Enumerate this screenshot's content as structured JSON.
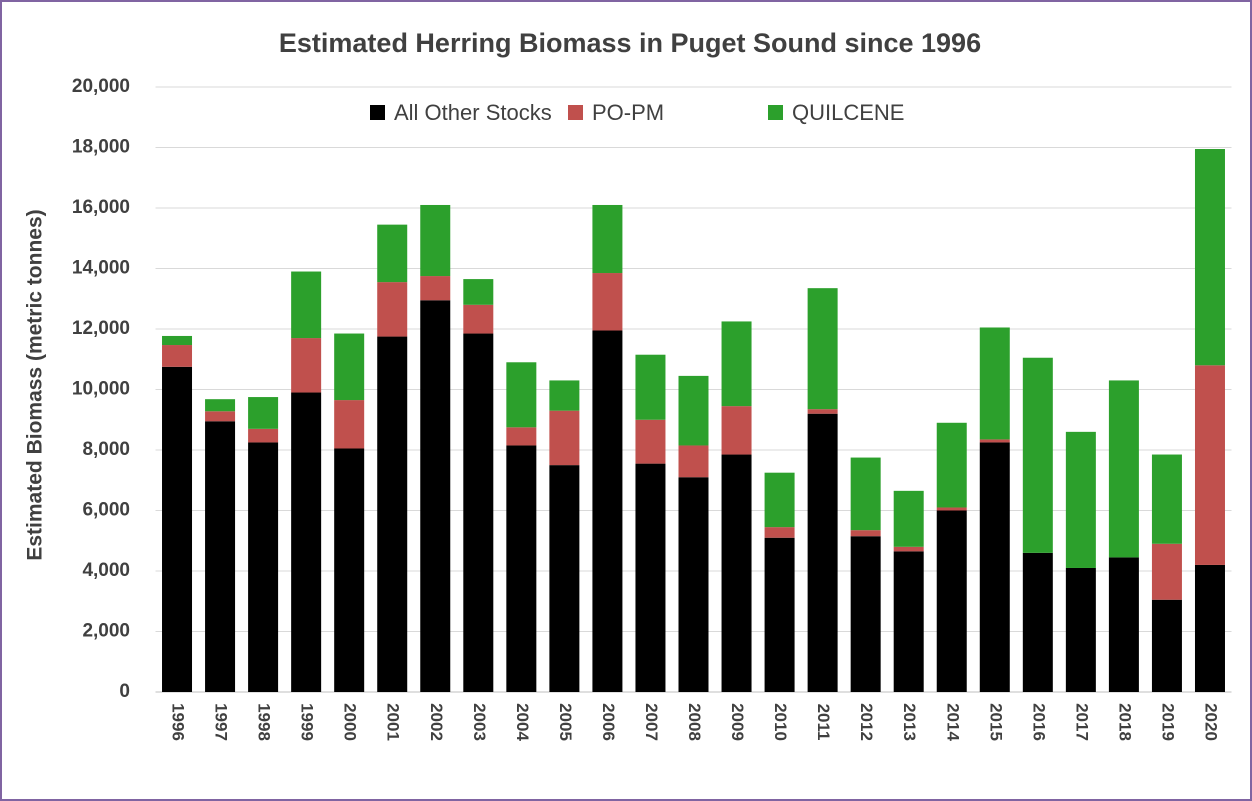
{
  "chart_data": {
    "type": "stacked_bar",
    "title": "Estimated Herring Biomass in Puget Sound since 1996",
    "y_label": "Estimated Biomass (metric tonnes)",
    "categories": [
      "1996",
      "1997",
      "1998",
      "1999",
      "2000",
      "2001",
      "2002",
      "2003",
      "2004",
      "2005",
      "2006",
      "2007",
      "2008",
      "2009",
      "2010",
      "2011",
      "2012",
      "2013",
      "2014",
      "2015",
      "2016",
      "2017",
      "2018",
      "2019",
      "2020"
    ],
    "series": [
      {
        "name": "All Other Stocks",
        "color": "#000000",
        "values": [
          10750,
          8950,
          8250,
          9900,
          8050,
          11750,
          12950,
          11850,
          8150,
          7500,
          11950,
          7550,
          7100,
          7850,
          5100,
          9200,
          5150,
          4650,
          6000,
          8250,
          4600,
          4100,
          4450,
          3050,
          4200
        ]
      },
      {
        "name": "PO-PM",
        "color": "#c0504d",
        "values": [
          720,
          330,
          450,
          1800,
          1600,
          1800,
          800,
          950,
          600,
          1800,
          1900,
          1450,
          1050,
          1600,
          350,
          150,
          200,
          150,
          100,
          100,
          0,
          0,
          0,
          1850,
          6600
        ]
      },
      {
        "name": "QUILCENE",
        "color": "#2ca02c",
        "values": [
          300,
          400,
          1050,
          2200,
          2200,
          1900,
          2350,
          850,
          2150,
          1000,
          2250,
          2150,
          2300,
          2800,
          1800,
          4000,
          2400,
          1850,
          2800,
          3700,
          6450,
          4500,
          5850,
          2950,
          7150
        ]
      }
    ],
    "ylim": [
      0,
      20000
    ],
    "yticks": [
      0,
      {
        "value": 2000,
        "label": "2,000"
      },
      {
        "value": 4000,
        "label": "4,000"
      },
      {
        "value": 6000,
        "label": "6,000"
      },
      {
        "value": 8000,
        "label": "8,000"
      },
      {
        "value": 10000,
        "label": "10,000"
      },
      {
        "value": 12000,
        "label": "12,000"
      },
      {
        "value": 14000,
        "label": "14,000"
      },
      {
        "value": 16000,
        "label": "16,000"
      },
      {
        "value": 18000,
        "label": "18,000"
      },
      {
        "value": 20000,
        "label": "20,000"
      }
    ],
    "grid": true,
    "legend": "top"
  }
}
